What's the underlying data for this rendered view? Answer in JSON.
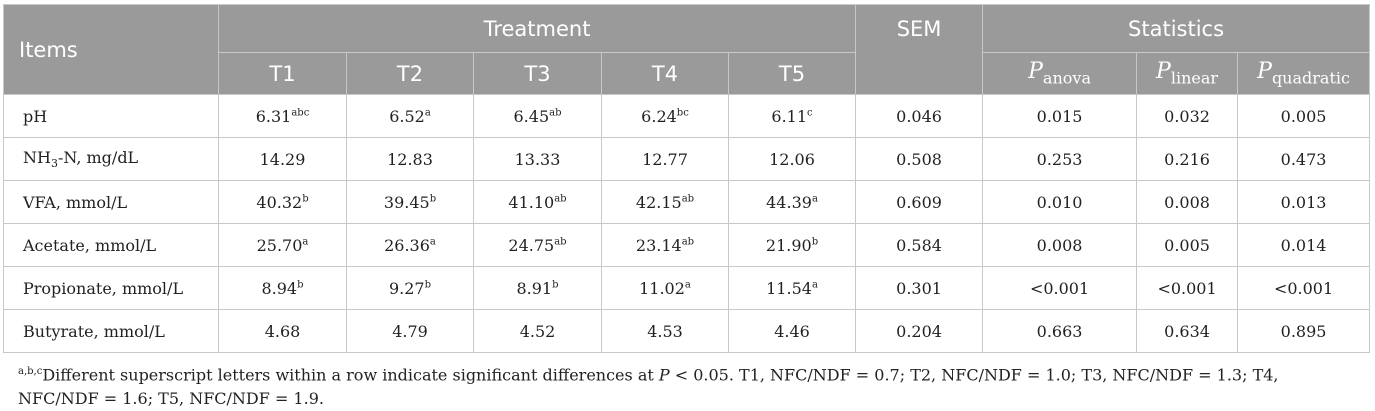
{
  "table": {
    "headers": {
      "items": "Items",
      "treatment": "Treatment",
      "sem": "SEM",
      "statistics": "Statistics",
      "treatments": [
        "T1",
        "T2",
        "T3",
        "T4",
        "T5"
      ],
      "p_letter": "P",
      "p_subs": [
        "anova",
        "linear",
        "quadratic"
      ]
    },
    "rows": [
      {
        "label": "pH",
        "label_sub": "",
        "label_rest": "",
        "values": [
          {
            "v": "6.31",
            "s": "abc"
          },
          {
            "v": "6.52",
            "s": "a"
          },
          {
            "v": "6.45",
            "s": "ab"
          },
          {
            "v": "6.24",
            "s": "bc"
          },
          {
            "v": "6.11",
            "s": "c"
          },
          {
            "v": "0.046",
            "s": ""
          },
          {
            "v": "0.015",
            "s": ""
          },
          {
            "v": "0.032",
            "s": ""
          },
          {
            "v": "0.005",
            "s": ""
          }
        ]
      },
      {
        "label": "NH",
        "label_sub": "3",
        "label_rest": "-N, mg/dL",
        "values": [
          {
            "v": "14.29",
            "s": ""
          },
          {
            "v": "12.83",
            "s": ""
          },
          {
            "v": "13.33",
            "s": ""
          },
          {
            "v": "12.77",
            "s": ""
          },
          {
            "v": "12.06",
            "s": ""
          },
          {
            "v": "0.508",
            "s": ""
          },
          {
            "v": "0.253",
            "s": ""
          },
          {
            "v": "0.216",
            "s": ""
          },
          {
            "v": "0.473",
            "s": ""
          }
        ]
      },
      {
        "label": "VFA, mmol/L",
        "label_sub": "",
        "label_rest": "",
        "values": [
          {
            "v": "40.32",
            "s": "b"
          },
          {
            "v": "39.45",
            "s": "b"
          },
          {
            "v": "41.10",
            "s": "ab"
          },
          {
            "v": "42.15",
            "s": "ab"
          },
          {
            "v": "44.39",
            "s": "a"
          },
          {
            "v": "0.609",
            "s": ""
          },
          {
            "v": "0.010",
            "s": ""
          },
          {
            "v": "0.008",
            "s": ""
          },
          {
            "v": "0.013",
            "s": ""
          }
        ]
      },
      {
        "label": "Acetate, mmol/L",
        "label_sub": "",
        "label_rest": "",
        "values": [
          {
            "v": "25.70",
            "s": "a"
          },
          {
            "v": "26.36",
            "s": "a"
          },
          {
            "v": "24.75",
            "s": "ab"
          },
          {
            "v": "23.14",
            "s": "ab"
          },
          {
            "v": "21.90",
            "s": "b"
          },
          {
            "v": "0.584",
            "s": ""
          },
          {
            "v": "0.008",
            "s": ""
          },
          {
            "v": "0.005",
            "s": ""
          },
          {
            "v": "0.014",
            "s": ""
          }
        ]
      },
      {
        "label": "Propionate, mmol/L",
        "label_sub": "",
        "label_rest": "",
        "values": [
          {
            "v": "8.94",
            "s": "b"
          },
          {
            "v": "9.27",
            "s": "b"
          },
          {
            "v": "8.91",
            "s": "b"
          },
          {
            "v": "11.02",
            "s": "a"
          },
          {
            "v": "11.54",
            "s": "a"
          },
          {
            "v": "0.301",
            "s": ""
          },
          {
            "v": "<0.001",
            "s": ""
          },
          {
            "v": "<0.001",
            "s": ""
          },
          {
            "v": "<0.001",
            "s": ""
          }
        ]
      },
      {
        "label": "Butyrate, mmol/L",
        "label_sub": "",
        "label_rest": "",
        "values": [
          {
            "v": "4.68",
            "s": ""
          },
          {
            "v": "4.79",
            "s": ""
          },
          {
            "v": "4.52",
            "s": ""
          },
          {
            "v": "4.53",
            "s": ""
          },
          {
            "v": "4.46",
            "s": ""
          },
          {
            "v": "0.204",
            "s": ""
          },
          {
            "v": "0.663",
            "s": ""
          },
          {
            "v": "0.634",
            "s": ""
          },
          {
            "v": "0.895",
            "s": ""
          }
        ]
      }
    ]
  },
  "footnote": {
    "sup": "a,b,c",
    "text1": "Different superscript letters within a row indicate significant differences at ",
    "p": "P",
    "text2": " < 0.05. T1, NFC/NDF = 0.7; T2, NFC/NDF = 1.0; T3, NFC/NDF = 1.3; T4, NFC/NDF = 1.6; T5, NFC/NDF = 1.9."
  }
}
